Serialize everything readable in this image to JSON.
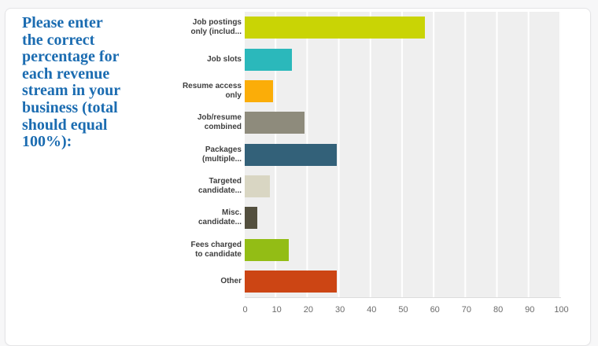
{
  "question": {
    "text": "Please enter\nthe correct\npercentage for\neach revenue\nstream in your\nbusiness (total\nshould equal\n100%):",
    "color": "#1b6cb1"
  },
  "chart_data": {
    "type": "bar",
    "orientation": "horizontal",
    "title": "",
    "categories": [
      "Job postings only (includ...",
      "Job slots",
      "Resume access only",
      "Job/resume combined",
      "Packages (multiple...",
      "Targeted candidate...",
      "Misc. candidate...",
      "Fees charged to candidate",
      "Other"
    ],
    "display_labels": [
      "Job postings\nonly (includ...",
      "Job slots",
      "Resume access\nonly",
      "Job/resume\ncombined",
      "Packages\n(multiple...",
      "Targeted\ncandidate...",
      "Misc.\ncandidate...",
      "Fees charged\nto candidate",
      "Other"
    ],
    "values": [
      57,
      15,
      9,
      19,
      29,
      8,
      4,
      14,
      29
    ],
    "bar_colors": [
      "#c9d405",
      "#2bb8bb",
      "#fbad08",
      "#8e8b7c",
      "#336179",
      "#d9d6c3",
      "#534f3e",
      "#93bd15",
      "#cc4514"
    ],
    "xlabel": "",
    "ylabel": "",
    "xlim": [
      0,
      100
    ],
    "xticks": [
      0,
      10,
      20,
      30,
      40,
      50,
      60,
      70,
      80,
      90,
      100
    ],
    "legend": "none",
    "grid": "vertical-white-on-gray",
    "plot_background": "#efefef",
    "gridline_color": "#ffffff"
  }
}
